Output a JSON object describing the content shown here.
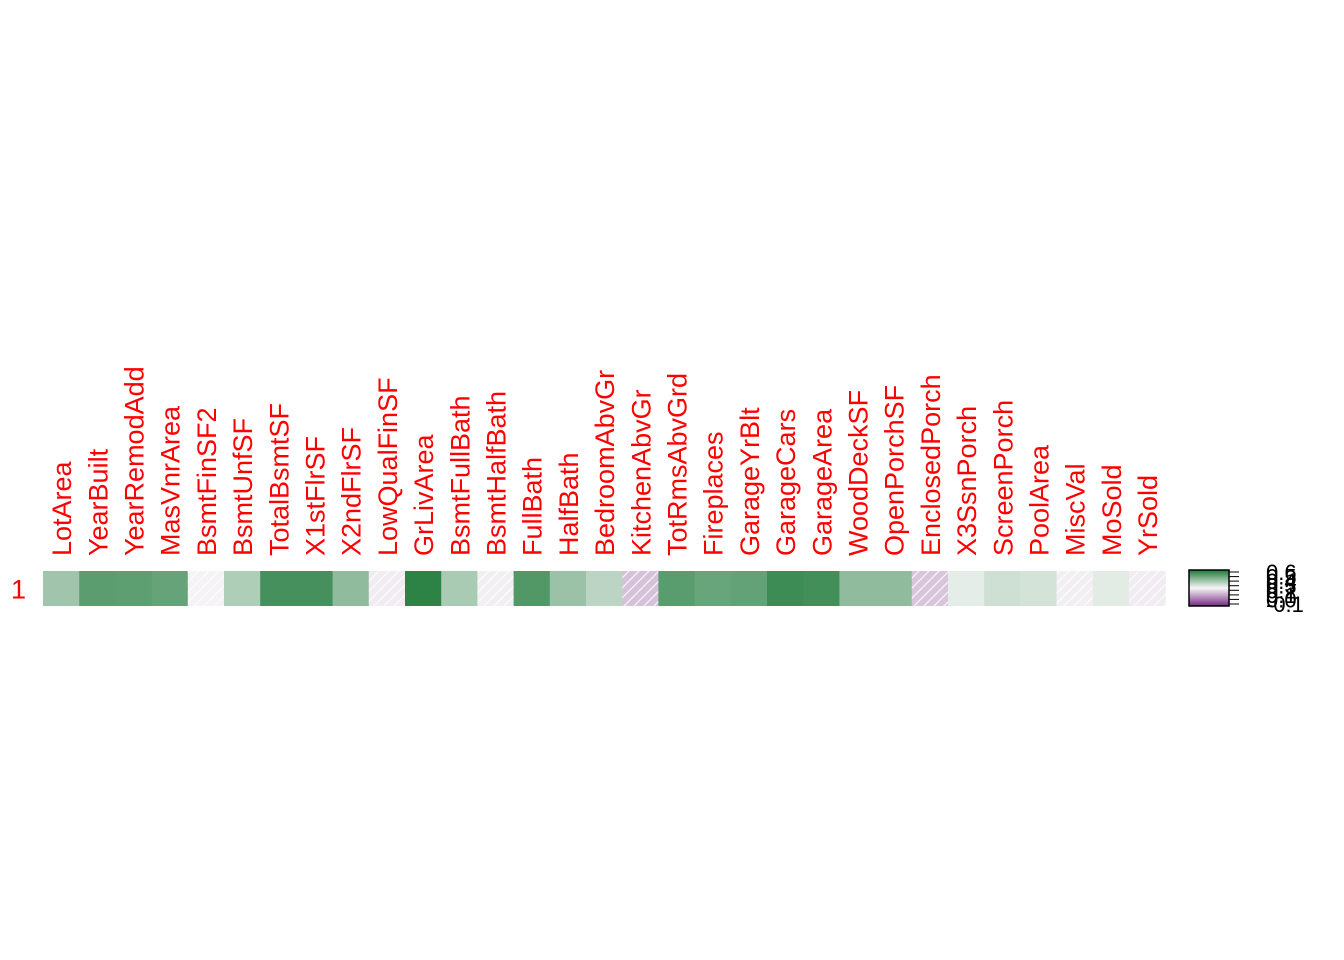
{
  "chart_data": {
    "type": "heatmap",
    "title": "",
    "xlabel": "",
    "ylabel": "",
    "rows": [
      "1"
    ],
    "columns": [
      "LotArea",
      "YearBuilt",
      "YearRemodAdd",
      "MasVnrArea",
      "BsmtFinSF2",
      "BsmtUnfSF",
      "TotalBsmtSF",
      "X1stFlrSF",
      "X2ndFlrSF",
      "LowQualFinSF",
      "GrLivArea",
      "BsmtFullBath",
      "BsmtHalfBath",
      "FullBath",
      "HalfBath",
      "BedroomAbvGr",
      "KitchenAbvGr",
      "TotRmsAbvGrd",
      "Fireplaces",
      "GarageYrBlt",
      "GarageCars",
      "GarageArea",
      "WoodDeckSF",
      "OpenPorchSF",
      "EnclosedPorch",
      "X3SsnPorch",
      "ScreenPorch",
      "PoolArea",
      "MiscVal",
      "MoSold",
      "YrSold"
    ],
    "values": [
      [
        0.26,
        0.52,
        0.51,
        0.48,
        -0.01,
        0.21,
        0.61,
        0.61,
        0.32,
        -0.03,
        0.71,
        0.23,
        -0.02,
        0.56,
        0.28,
        0.17,
        -0.14,
        0.53,
        0.47,
        0.49,
        0.64,
        0.62,
        0.32,
        0.32,
        -0.13,
        0.04,
        0.11,
        0.09,
        -0.02,
        0.05,
        -0.03
      ]
    ],
    "color_scale": {
      "low": "#762a83",
      "mid": "#f7f7f7",
      "high": "#1b7837",
      "range": [
        -0.15,
        0.71
      ]
    },
    "legend": {
      "placement": "right",
      "tick_labels": [
        "0.6",
        "0.5",
        "0.4",
        "0.3",
        "0.2",
        "0.1",
        "0.0",
        "-0.1"
      ]
    },
    "label_color": "#ff0000"
  }
}
